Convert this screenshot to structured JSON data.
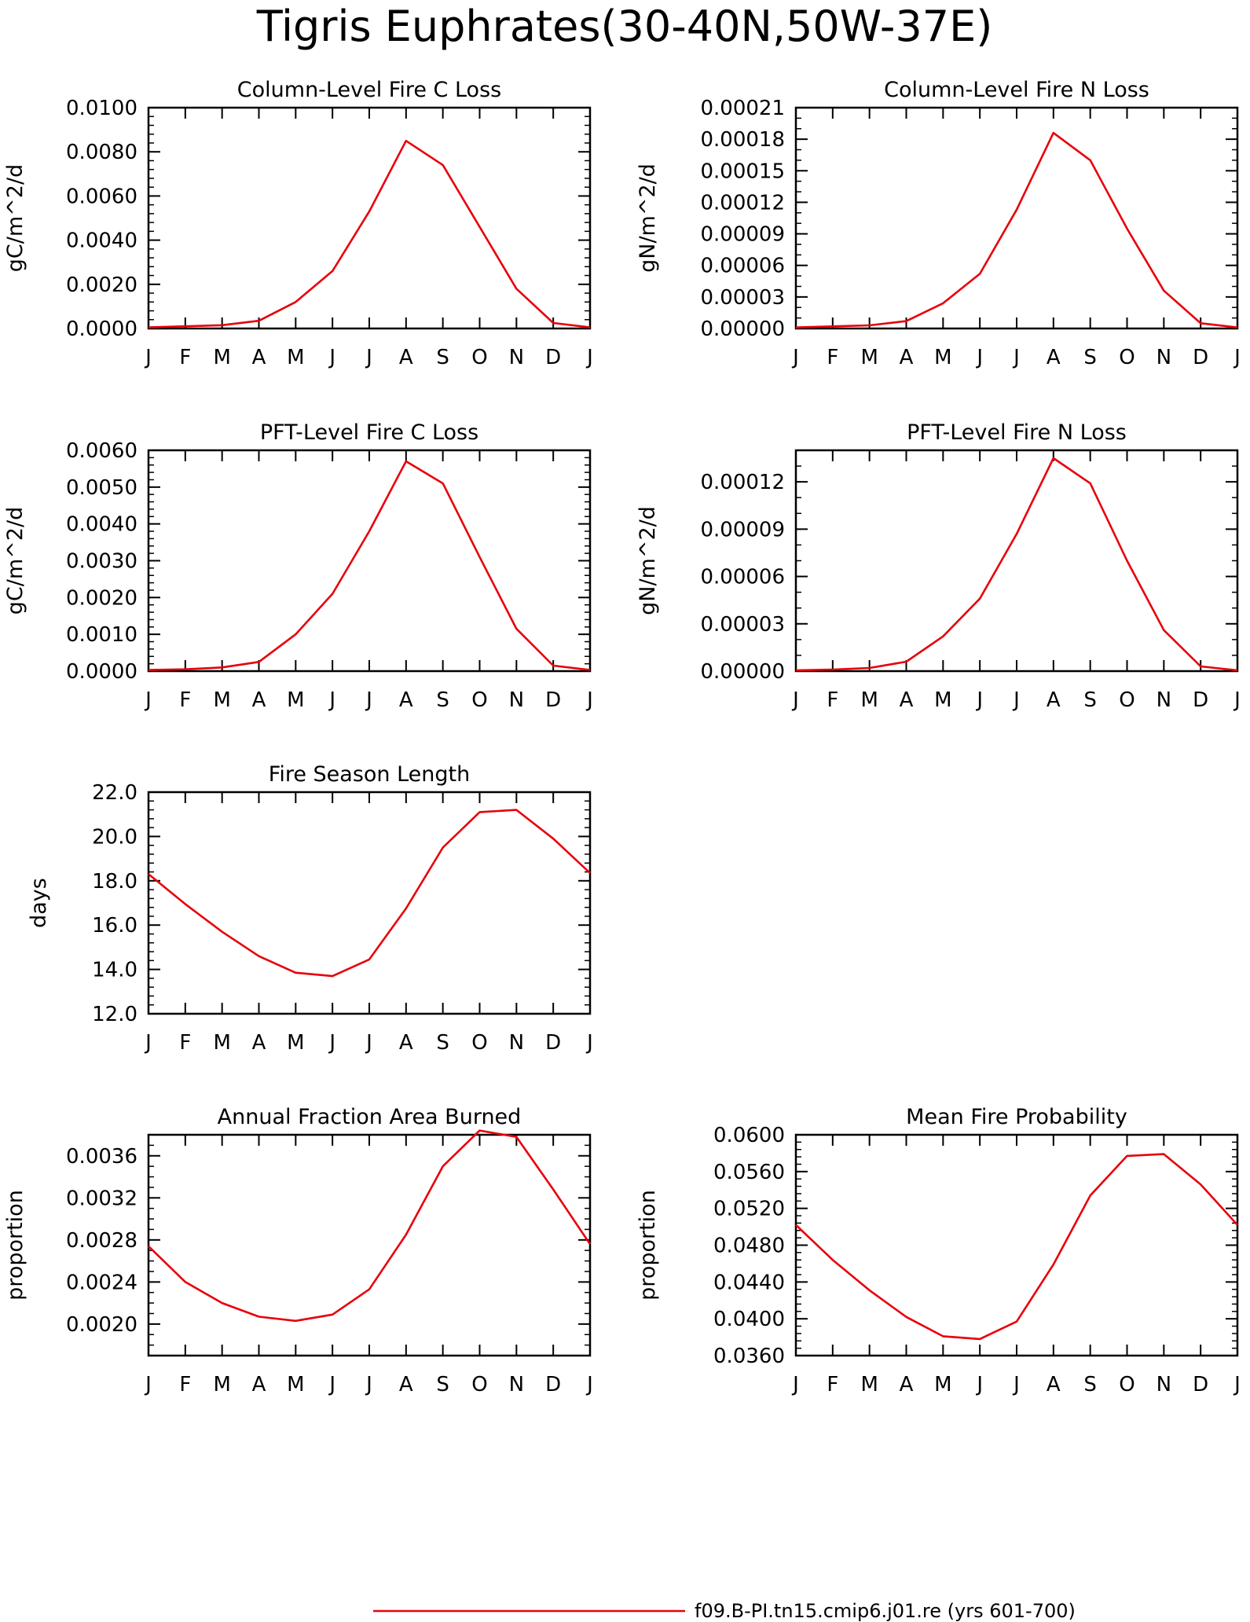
{
  "title": "Tigris Euphrates(30-40N,50W-37E)",
  "legend": {
    "label": "f09.B-PI.tn15.cmip6.j01.re (yrs 601-700)",
    "color": "#e8000b"
  },
  "line_color": "#e8000b",
  "chart_data": [
    {
      "type": "line",
      "title": "Column-Level Fire C Loss",
      "ylabel": "gC/m^2/d",
      "categories": [
        "J",
        "F",
        "M",
        "A",
        "M",
        "J",
        "J",
        "A",
        "S",
        "O",
        "N",
        "D",
        "J"
      ],
      "values": [
        5e-05,
        0.0001,
        0.00015,
        0.00035,
        0.0012,
        0.0026,
        0.0053,
        0.0085,
        0.0074,
        0.0046,
        0.0018,
        0.00025,
        5e-05
      ],
      "ylim": [
        0,
        0.01
      ],
      "yticks": [
        "0.0000",
        "0.0020",
        "0.0040",
        "0.0060",
        "0.0080",
        "0.0100"
      ],
      "ytick_values": [
        0,
        0.002,
        0.004,
        0.006,
        0.008,
        0.01
      ],
      "minor_step": 0.0004
    },
    {
      "type": "line",
      "title": "Column-Level Fire N Loss",
      "ylabel": "gN/m^2/d",
      "categories": [
        "J",
        "F",
        "M",
        "A",
        "M",
        "J",
        "J",
        "A",
        "S",
        "O",
        "N",
        "D",
        "J"
      ],
      "values": [
        1e-06,
        2e-06,
        3e-06,
        7e-06,
        2.4e-05,
        5.2e-05,
        0.000113,
        0.000186,
        0.00016,
        9.5e-05,
        3.6e-05,
        5e-06,
        1e-06
      ],
      "ylim": [
        0,
        0.00021
      ],
      "yticks": [
        "0.00000",
        "0.00003",
        "0.00006",
        "0.00009",
        "0.00012",
        "0.00015",
        "0.00018",
        "0.00021"
      ],
      "ytick_values": [
        0,
        3e-05,
        6e-05,
        9e-05,
        0.00012,
        0.00015,
        0.00018,
        0.00021
      ],
      "minor_step": 1e-05
    },
    {
      "type": "line",
      "title": "PFT-Level Fire C Loss",
      "ylabel": "gC/m^2/d",
      "categories": [
        "J",
        "F",
        "M",
        "A",
        "M",
        "J",
        "J",
        "A",
        "S",
        "O",
        "N",
        "D",
        "J"
      ],
      "values": [
        3e-05,
        5e-05,
        0.0001,
        0.00025,
        0.001,
        0.0021,
        0.0038,
        0.0057,
        0.0051,
        0.0031,
        0.00115,
        0.00015,
        3e-05
      ],
      "ylim": [
        0,
        0.006
      ],
      "yticks": [
        "0.0000",
        "0.0010",
        "0.0020",
        "0.0030",
        "0.0040",
        "0.0050",
        "0.0060"
      ],
      "ytick_values": [
        0,
        0.001,
        0.002,
        0.003,
        0.004,
        0.005,
        0.006
      ],
      "minor_step": 0.0002
    },
    {
      "type": "line",
      "title": "PFT-Level Fire N Loss",
      "ylabel": "gN/m^2/d",
      "categories": [
        "J",
        "F",
        "M",
        "A",
        "M",
        "J",
        "J",
        "A",
        "S",
        "O",
        "N",
        "D",
        "J"
      ],
      "values": [
        5e-07,
        1e-06,
        2e-06,
        6e-06,
        2.2e-05,
        4.6e-05,
        8.7e-05,
        0.000135,
        0.000119,
        7e-05,
        2.6e-05,
        3e-06,
        5e-07
      ],
      "ylim": [
        0,
        0.00014
      ],
      "yticks": [
        "0.00000",
        "0.00003",
        "0.00006",
        "0.00009",
        "0.00012"
      ],
      "ytick_values": [
        0,
        3e-05,
        6e-05,
        9e-05,
        0.00012
      ],
      "minor_step": 1e-05
    },
    {
      "type": "line",
      "title": "Fire Season Length",
      "ylabel": "days",
      "categories": [
        "J",
        "F",
        "M",
        "A",
        "M",
        "J",
        "J",
        "A",
        "S",
        "O",
        "N",
        "D",
        "J"
      ],
      "values": [
        18.3,
        16.95,
        15.7,
        14.6,
        13.85,
        13.7,
        14.45,
        16.75,
        19.5,
        21.1,
        21.2,
        19.9,
        18.35
      ],
      "ylim": [
        12,
        22
      ],
      "yticks": [
        "12.0",
        "14.0",
        "16.0",
        "18.0",
        "20.0",
        "22.0"
      ],
      "ytick_values": [
        12,
        14,
        16,
        18,
        20,
        22
      ],
      "minor_step": 0.4
    },
    {
      "type": "line",
      "title": "Annual Fraction Area Burned",
      "ylabel": "proportion",
      "categories": [
        "J",
        "F",
        "M",
        "A",
        "M",
        "J",
        "J",
        "A",
        "S",
        "O",
        "N",
        "D",
        "J"
      ],
      "values": [
        0.00274,
        0.0024,
        0.0022,
        0.00207,
        0.00203,
        0.00209,
        0.00233,
        0.00285,
        0.0035,
        0.00384,
        0.00378,
        0.00328,
        0.00276
      ],
      "ylim": [
        0.0017,
        0.0038
      ],
      "yticks": [
        "0.0020",
        "0.0024",
        "0.0028",
        "0.0032",
        "0.0036"
      ],
      "ytick_values": [
        0.002,
        0.0024,
        0.0028,
        0.0032,
        0.0036
      ],
      "minor_step": 0.0001
    },
    {
      "type": "line",
      "title": "Mean Fire Probability",
      "ylabel": "proportion",
      "categories": [
        "J",
        "F",
        "M",
        "A",
        "M",
        "J",
        "J",
        "A",
        "S",
        "O",
        "N",
        "D",
        "J"
      ],
      "values": [
        0.0502,
        0.0464,
        0.0431,
        0.0402,
        0.0381,
        0.0378,
        0.0397,
        0.0459,
        0.0534,
        0.0577,
        0.0579,
        0.0546,
        0.0502
      ],
      "ylim": [
        0.036,
        0.06
      ],
      "yticks": [
        "0.0360",
        "0.0400",
        "0.0440",
        "0.0480",
        "0.0520",
        "0.0560",
        "0.0600"
      ],
      "ytick_values": [
        0.036,
        0.04,
        0.044,
        0.048,
        0.052,
        0.056,
        0.06
      ],
      "minor_step": 0.0008
    }
  ]
}
